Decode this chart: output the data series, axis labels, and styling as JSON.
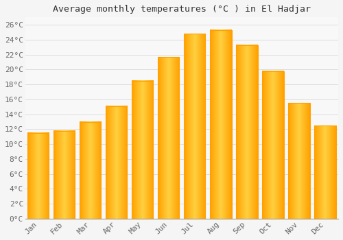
{
  "title": "Average monthly temperatures (°C ) in El Hadjar",
  "months": [
    "Jan",
    "Feb",
    "Mar",
    "Apr",
    "May",
    "Jun",
    "Jul",
    "Aug",
    "Sep",
    "Oct",
    "Nov",
    "Dec"
  ],
  "values": [
    11.5,
    11.8,
    13.0,
    15.1,
    18.5,
    21.7,
    24.8,
    25.3,
    23.3,
    19.8,
    15.5,
    12.5
  ],
  "bar_color_center": "#FFD040",
  "bar_color_edge": "#FFA000",
  "background_color": "#f5f5f5",
  "plot_bg_color": "#f8f8f8",
  "grid_color": "#dddddd",
  "title_fontsize": 9.5,
  "tick_fontsize": 8,
  "tick_color": "#666666",
  "title_color": "#333333",
  "ylim": [
    0,
    27
  ],
  "yticks": [
    0,
    2,
    4,
    6,
    8,
    10,
    12,
    14,
    16,
    18,
    20,
    22,
    24,
    26
  ],
  "bar_width": 0.82
}
